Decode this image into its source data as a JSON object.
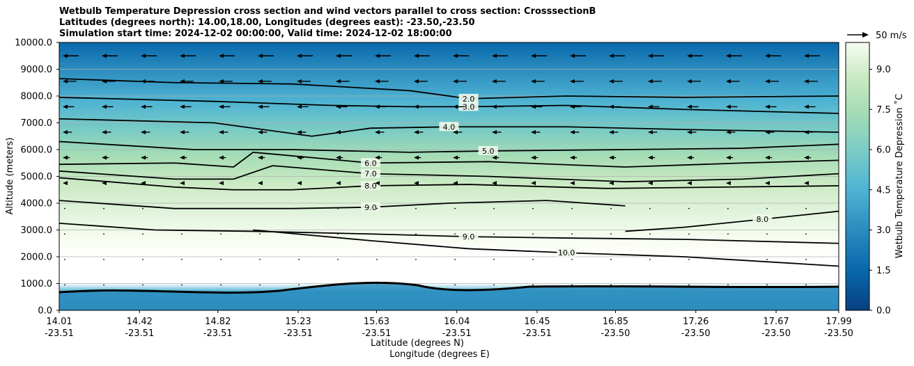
{
  "chart_data": {
    "type": "contour",
    "title_lines": [
      "Wetbulb Temperature Depression cross section and wind vectors parallel to cross section: CrosssectionB",
      "Latitudes (degrees north): 14.00,18.00, Longitudes (degrees east): -23.50,-23.50",
      "Simulation start time: 2024-12-02 00:00:00, Valid time: 2024-12-02 18:00:00"
    ],
    "xlabel_1": "Latitude (degrees N)",
    "xlabel_2": "Longitude (degrees E)",
    "ylabel": "Altitude (meters)",
    "ylim": [
      0,
      10000
    ],
    "y_ticks": [
      "0.0",
      "1000.0",
      "2000.0",
      "3000.0",
      "4000.0",
      "5000.0",
      "6000.0",
      "7000.0",
      "8000.0",
      "9000.0",
      "10000.0"
    ],
    "x_ticks": [
      {
        "lat": "14.01",
        "lon": "-23.51",
        "pos": 14.01
      },
      {
        "lat": "14.42",
        "lon": "-23.51",
        "pos": 14.42
      },
      {
        "lat": "14.82",
        "lon": "-23.51",
        "pos": 14.82
      },
      {
        "lat": "15.23",
        "lon": "-23.51",
        "pos": 15.23
      },
      {
        "lat": "15.63",
        "lon": "-23.51",
        "pos": 15.63
      },
      {
        "lat": "16.04",
        "lon": "-23.51",
        "pos": 16.04
      },
      {
        "lat": "16.45",
        "lon": "-23.51",
        "pos": 16.45
      },
      {
        "lat": "16.85",
        "lon": "-23.50",
        "pos": 16.85
      },
      {
        "lat": "17.26",
        "lon": "-23.50",
        "pos": 17.26
      },
      {
        "lat": "17.67",
        "lon": "-23.50",
        "pos": 17.67
      },
      {
        "lat": "17.99",
        "lon": "-23.50",
        "pos": 17.99
      }
    ],
    "xlim": [
      14.01,
      17.99
    ],
    "grid": "horizontal",
    "colorbar": {
      "label": "Wetbulb Temperature Depression ˚C",
      "range": [
        0,
        10
      ],
      "ticks": [
        "0.0",
        "1.5",
        "3.0",
        "4.5",
        "6.0",
        "7.5",
        "9.0"
      ],
      "colormap": "GnBu_r"
    },
    "vector_key": "50 m/s",
    "contour_lines": [
      {
        "level": 2.0,
        "label": "2.0",
        "points": [
          [
            14.01,
            8650
          ],
          [
            14.6,
            8500
          ],
          [
            15.2,
            8450
          ],
          [
            15.8,
            8200
          ],
          [
            16.1,
            7900
          ],
          [
            16.6,
            8000
          ],
          [
            17.2,
            7950
          ],
          [
            17.99,
            8000
          ]
        ]
      },
      {
        "level": 3.0,
        "label": "3.0",
        "points": [
          [
            14.01,
            7950
          ],
          [
            14.8,
            7800
          ],
          [
            15.4,
            7650
          ],
          [
            15.8,
            7600
          ],
          [
            16.1,
            7600
          ],
          [
            16.6,
            7650
          ],
          [
            17.2,
            7500
          ],
          [
            17.99,
            7350
          ]
        ]
      },
      {
        "level": 4.0,
        "label": "4.0",
        "points": [
          [
            14.01,
            7150
          ],
          [
            14.8,
            7000
          ],
          [
            15.3,
            6500
          ],
          [
            15.6,
            6800
          ],
          [
            16.0,
            6850
          ],
          [
            16.6,
            6850
          ],
          [
            17.2,
            6750
          ],
          [
            17.99,
            6650
          ]
        ]
      },
      {
        "level": 5.0,
        "label": "5.0",
        "points": [
          [
            14.01,
            6300
          ],
          [
            14.7,
            6000
          ],
          [
            15.2,
            6000
          ],
          [
            15.8,
            5900
          ],
          [
            16.2,
            5950
          ],
          [
            16.9,
            6000
          ],
          [
            17.5,
            6050
          ],
          [
            17.99,
            6200
          ]
        ]
      },
      {
        "level": 6.0,
        "label": "6.0",
        "points": [
          [
            14.01,
            5450
          ],
          [
            14.6,
            5500
          ],
          [
            14.9,
            5350
          ],
          [
            15.0,
            5900
          ],
          [
            15.6,
            5500
          ],
          [
            16.2,
            5550
          ],
          [
            16.9,
            5350
          ],
          [
            17.5,
            5500
          ],
          [
            17.99,
            5600
          ]
        ]
      },
      {
        "level": 7.0,
        "label": "7.0",
        "points": [
          [
            14.01,
            5200
          ],
          [
            14.6,
            4900
          ],
          [
            14.9,
            4900
          ],
          [
            15.1,
            5400
          ],
          [
            15.6,
            5100
          ],
          [
            16.2,
            5000
          ],
          [
            16.9,
            4800
          ],
          [
            17.5,
            4900
          ],
          [
            17.99,
            5100
          ]
        ]
      },
      {
        "level": 8.0,
        "label": "8.0",
        "points": [
          [
            14.01,
            4950
          ],
          [
            14.6,
            4600
          ],
          [
            14.9,
            4500
          ],
          [
            15.2,
            4500
          ],
          [
            15.6,
            4650
          ],
          [
            16.1,
            4700
          ],
          [
            16.8,
            4550
          ],
          [
            17.4,
            4600
          ],
          [
            17.99,
            4650
          ]
        ]
      },
      {
        "level": 9.0,
        "label": "9.0",
        "points": [
          [
            14.01,
            4100
          ],
          [
            14.6,
            3800
          ],
          [
            15.2,
            3800
          ],
          [
            15.6,
            3850
          ],
          [
            16.0,
            4000
          ],
          [
            16.5,
            4100
          ],
          [
            16.9,
            3900
          ]
        ]
      },
      {
        "level": 8.0,
        "label": "8.0",
        "points": [
          [
            16.9,
            2950
          ],
          [
            17.2,
            3100
          ],
          [
            17.6,
            3400
          ],
          [
            17.99,
            3700
          ]
        ]
      },
      {
        "level": 9.0,
        "label": "9.0",
        "points": [
          [
            14.01,
            3250
          ],
          [
            14.5,
            3000
          ],
          [
            15.0,
            2950
          ],
          [
            15.6,
            2850
          ],
          [
            16.1,
            2750
          ],
          [
            16.6,
            2700
          ],
          [
            17.2,
            2650
          ],
          [
            17.99,
            2500
          ]
        ]
      },
      {
        "level": 10.0,
        "label": "10.0",
        "points": [
          [
            15.0,
            3000
          ],
          [
            15.6,
            2600
          ],
          [
            16.1,
            2300
          ],
          [
            16.6,
            2150
          ],
          [
            17.2,
            2000
          ],
          [
            17.99,
            1650
          ]
        ]
      }
    ]
  }
}
